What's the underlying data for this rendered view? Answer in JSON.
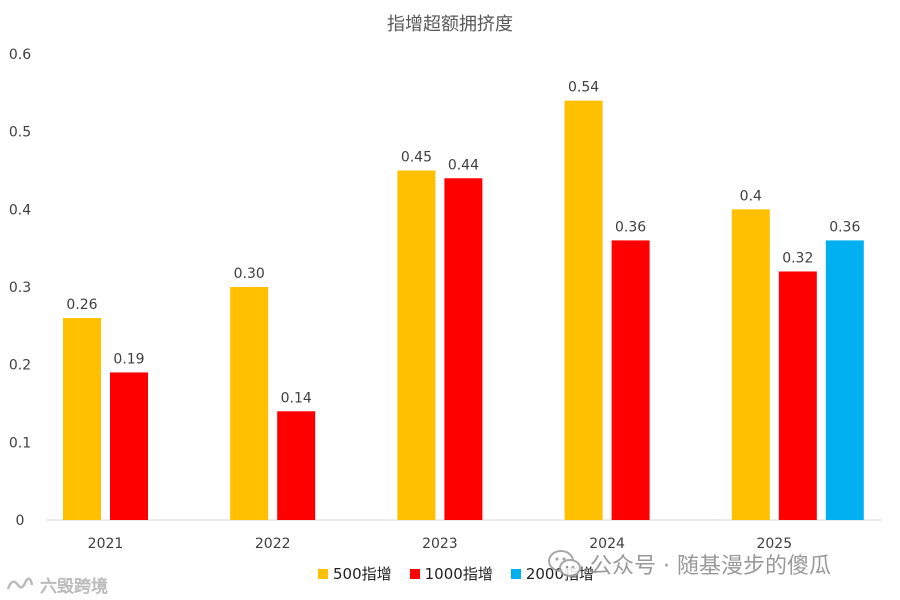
{
  "chart_data": {
    "type": "bar",
    "title": "指增超额拥挤度",
    "categories": [
      "2021",
      "2022",
      "2023",
      "2024",
      "2025"
    ],
    "ylim": [
      0,
      0.6
    ],
    "yticks": [
      "0",
      "0.1",
      "0.2",
      "0.3",
      "0.4",
      "0.5",
      "0.6"
    ],
    "ytick_values": [
      0,
      0.1,
      0.2,
      0.3,
      0.4,
      0.5,
      0.6
    ],
    "grid": false,
    "legend_position": "bottom",
    "series": [
      {
        "name": "500指增",
        "color": "#FFC000",
        "values": [
          0.26,
          0.3,
          0.45,
          0.54,
          0.4
        ],
        "labels": [
          "0.26",
          "0.30",
          "0.45",
          "0.54",
          "0.4"
        ]
      },
      {
        "name": "1000指增",
        "color": "#FF0000",
        "values": [
          0.19,
          0.14,
          0.44,
          0.36,
          0.32
        ],
        "labels": [
          "0.19",
          "0.14",
          "0.44",
          "0.36",
          "0.32"
        ]
      },
      {
        "name": "2000指增",
        "color": "#00B0F0",
        "values": [
          null,
          null,
          null,
          null,
          0.36
        ],
        "labels": [
          null,
          null,
          null,
          null,
          "0.36"
        ]
      }
    ]
  },
  "watermarks": {
    "wechat_text": "公众号 · 随基漫步的傻瓜",
    "wechat_icon": "wechat-icon",
    "site_text": "六毁跨境",
    "site_icon": "logo-icon"
  }
}
